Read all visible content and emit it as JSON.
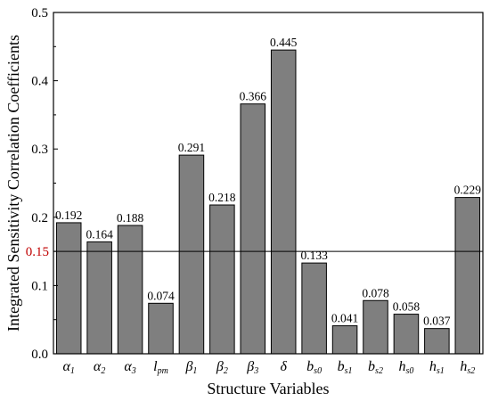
{
  "chart_data": {
    "type": "bar",
    "xlabel": "Structure Variables",
    "ylabel": "Integrated Sensitivity Correlation Coefficients",
    "ylim": [
      0.0,
      0.5
    ],
    "yticks": [
      "0.0",
      "0.1",
      "0.2",
      "0.3",
      "0.4",
      "0.5"
    ],
    "categories": [
      {
        "base": "α",
        "sub": "1"
      },
      {
        "base": "α",
        "sub": "2"
      },
      {
        "base": "α",
        "sub": "3"
      },
      {
        "base": "l",
        "sub": "pm"
      },
      {
        "base": "β",
        "sub": "1"
      },
      {
        "base": "β",
        "sub": "2"
      },
      {
        "base": "β",
        "sub": "3"
      },
      {
        "base": "δ",
        "sub": ""
      },
      {
        "base": "b",
        "sub": "s0"
      },
      {
        "base": "b",
        "sub": "s1"
      },
      {
        "base": "b",
        "sub": "s2"
      },
      {
        "base": "h",
        "sub": "s0"
      },
      {
        "base": "h",
        "sub": "s1"
      },
      {
        "base": "h",
        "sub": "s2"
      }
    ],
    "values": [
      0.192,
      0.164,
      0.188,
      0.074,
      0.291,
      0.218,
      0.366,
      0.445,
      0.133,
      0.041,
      0.078,
      0.058,
      0.037,
      0.229
    ],
    "value_labels": [
      "0.192",
      "0.164",
      "0.188",
      "0.074",
      "0.291",
      "0.218",
      "0.366",
      "0.445",
      "0.133",
      "0.041",
      "0.078",
      "0.058",
      "0.037",
      "0.229"
    ],
    "reference_line": {
      "value": 0.15,
      "label": "0.15",
      "label_color": "#c00000"
    },
    "bar_color": "#7f7f7f",
    "bar_edge_color": "#000000",
    "grid": false
  }
}
